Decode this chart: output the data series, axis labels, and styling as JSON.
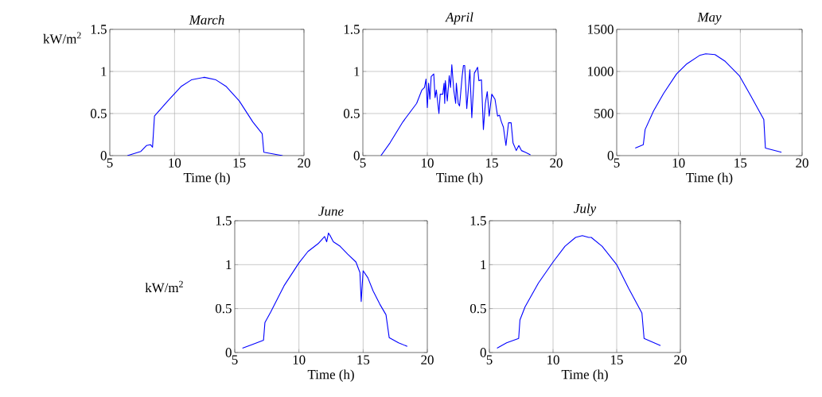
{
  "chart_data": [
    {
      "type": "line",
      "title": "March",
      "xlabel": "Time (h)",
      "ylabel": "kW/m$^{2}$",
      "color": "#0000ff",
      "grid": true,
      "xlim": [
        5,
        20
      ],
      "ylim": [
        0,
        1.5
      ],
      "xticks": [
        5,
        10,
        15,
        20
      ],
      "yticks": [
        0,
        0.5,
        1,
        1.5
      ],
      "x": [
        6.36,
        7.4,
        7.83,
        8.14,
        8.3,
        8.45,
        9.48,
        10.5,
        11.3,
        12.3,
        13.2,
        14.0,
        15.0,
        16.05,
        16.77,
        16.9,
        18.35
      ],
      "values": [
        0,
        0.05,
        0.12,
        0.13,
        0.1,
        0.47,
        0.65,
        0.82,
        0.9,
        0.93,
        0.9,
        0.82,
        0.65,
        0.4,
        0.26,
        0.04,
        0
      ]
    },
    {
      "type": "line",
      "title": "April",
      "xlabel": "Time (h)",
      "color": "#0000ff",
      "grid": true,
      "xlim": [
        5,
        20
      ],
      "ylim": [
        0,
        1.5
      ],
      "xticks": [
        5,
        10,
        15,
        20
      ],
      "yticks": [
        0,
        0.5,
        1,
        1.5
      ],
      "x": [
        6.4,
        7.1,
        8.1,
        9.17,
        9.58,
        9.78,
        9.9,
        10.0,
        10.1,
        10.2,
        10.3,
        10.5,
        10.6,
        10.7,
        10.9,
        11.0,
        11.2,
        11.3,
        11.35,
        11.4,
        11.55,
        11.7,
        11.8,
        11.9,
        12.05,
        12.2,
        12.25,
        12.4,
        12.5,
        12.7,
        12.8,
        12.9,
        13.06,
        13.3,
        13.45,
        13.65,
        13.8,
        13.9,
        14.0,
        14.2,
        14.35,
        14.5,
        14.65,
        14.8,
        15.0,
        15.25,
        15.45,
        15.6,
        15.75,
        15.9,
        16.1,
        16.3,
        16.5,
        16.65,
        16.9,
        17.1,
        17.3,
        17.6,
        18.0
      ],
      "values": [
        0,
        0.15,
        0.4,
        0.62,
        0.78,
        0.81,
        0.91,
        0.57,
        0.86,
        0.67,
        0.94,
        0.97,
        0.69,
        0.78,
        0.5,
        0.73,
        0.73,
        0.86,
        0.62,
        0.89,
        0.65,
        0.95,
        0.81,
        1.08,
        0.78,
        0.62,
        0.86,
        0.62,
        0.59,
        0.94,
        1.07,
        1.07,
        0.56,
        1.02,
        0.45,
        0.98,
        1.02,
        1.05,
        0.89,
        0.9,
        0.31,
        0.62,
        0.76,
        0.47,
        0.73,
        0.67,
        0.47,
        0.48,
        0.4,
        0.34,
        0.12,
        0.39,
        0.39,
        0.15,
        0.06,
        0.12,
        0.06,
        0.04,
        0.01
      ]
    },
    {
      "type": "line",
      "title": "May",
      "xlabel": "Time (h)",
      "color": "#0000ff",
      "grid": true,
      "xlim": [
        5,
        20
      ],
      "ylim": [
        0,
        1500
      ],
      "xticks": [
        5,
        10,
        15,
        20
      ],
      "yticks": [
        0,
        500,
        1000,
        1500
      ],
      "x": [
        6.5,
        7.15,
        7.3,
        7.98,
        8.8,
        9.84,
        10.67,
        11.7,
        12.2,
        12.95,
        13.78,
        14.92,
        15.85,
        16.9,
        17.03,
        18.33
      ],
      "values": [
        90,
        130,
        310,
        530,
        740,
        970,
        1090,
        1190,
        1210,
        1200,
        1120,
        950,
        710,
        430,
        90,
        40
      ]
    },
    {
      "type": "line",
      "title": "June",
      "xlabel": "Time (h)",
      "ylabel": "kW/m$^{2}$",
      "color": "#0000ff",
      "grid": true,
      "xlim": [
        5,
        20
      ],
      "ylim": [
        0,
        1.5
      ],
      "xticks": [
        5,
        10,
        15,
        20
      ],
      "yticks": [
        0,
        0.5,
        1,
        1.5
      ],
      "x": [
        5.6,
        6.35,
        7.24,
        7.35,
        7.8,
        8.84,
        10.0,
        10.7,
        11.5,
        12.0,
        12.16,
        12.3,
        12.47,
        12.68,
        13.2,
        13.8,
        14.44,
        14.75,
        14.85,
        15.0,
        15.37,
        15.78,
        16.3,
        16.78,
        17.03,
        17.76,
        18.44
      ],
      "values": [
        0.05,
        0.09,
        0.14,
        0.34,
        0.46,
        0.76,
        1.02,
        1.15,
        1.24,
        1.32,
        1.26,
        1.36,
        1.32,
        1.26,
        1.21,
        1.12,
        1.03,
        0.91,
        0.58,
        0.93,
        0.85,
        0.7,
        0.55,
        0.43,
        0.17,
        0.11,
        0.07
      ]
    },
    {
      "type": "line",
      "title": "July",
      "xlabel": "Time (h)",
      "color": "#0000ff",
      "grid": true,
      "xlim": [
        5,
        20
      ],
      "ylim": [
        0,
        1.5
      ],
      "xticks": [
        5,
        10,
        15,
        20
      ],
      "yticks": [
        0,
        0.5,
        1,
        1.5
      ],
      "x": [
        5.6,
        6.35,
        7.3,
        7.4,
        7.8,
        8.85,
        10.0,
        10.94,
        11.77,
        12.3,
        12.8,
        13.0,
        13.85,
        15.0,
        15.94,
        16.98,
        17.15,
        18.44
      ],
      "values": [
        0.05,
        0.11,
        0.16,
        0.37,
        0.52,
        0.79,
        1.03,
        1.21,
        1.31,
        1.33,
        1.31,
        1.31,
        1.21,
        1.0,
        0.73,
        0.45,
        0.16,
        0.08
      ]
    }
  ]
}
